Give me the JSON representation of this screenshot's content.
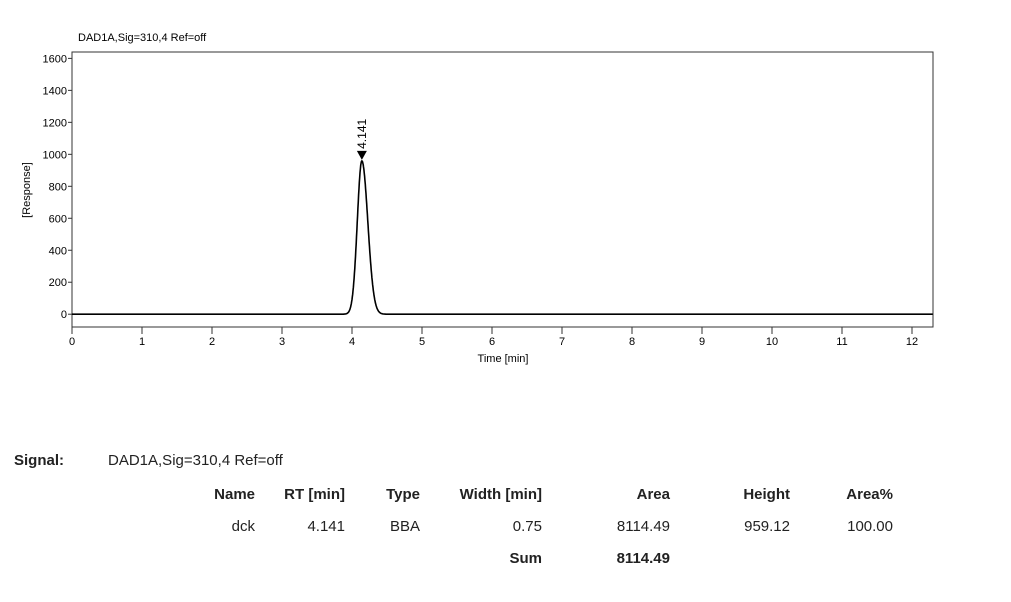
{
  "chart_data": {
    "type": "line",
    "title": "DAD1A,Sig=310,4  Ref=off",
    "xlabel": "Time [min]",
    "ylabel": "[Response]",
    "xlim": [
      0,
      12.3
    ],
    "ylim": [
      -80,
      1640
    ],
    "xticks": [
      "0",
      "1",
      "2",
      "3",
      "4",
      "5",
      "6",
      "7",
      "8",
      "9",
      "10",
      "11",
      "12"
    ],
    "yticks": [
      "0",
      "200",
      "400",
      "600",
      "800",
      "1000",
      "1200",
      "1400",
      "1600"
    ],
    "grid": false,
    "peaks": [
      {
        "label": "4.141",
        "rt": 4.141,
        "height": 959.12
      }
    ],
    "baseline": 0,
    "line_color": "#000000"
  },
  "report": {
    "signal_label": "Signal:",
    "signal_value": "DAD1A,Sig=310,4  Ref=off",
    "headers": [
      "Name",
      "RT [min]",
      "Type",
      "Width [min]",
      "Area",
      "Height",
      "Area%"
    ],
    "rows": [
      [
        "dck",
        "4.141",
        "BBA",
        "0.75",
        "8114.49",
        "959.12",
        "100.00"
      ]
    ],
    "sum_label": "Sum",
    "sum_value": "8114.49"
  }
}
